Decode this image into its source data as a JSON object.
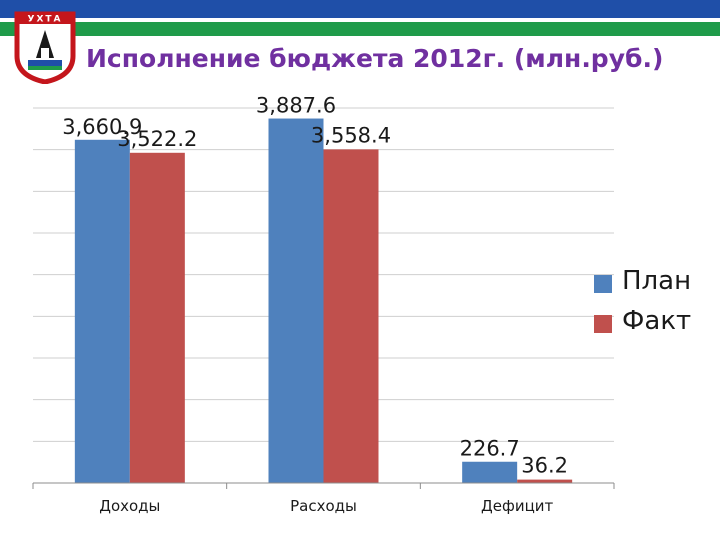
{
  "header": {
    "title": "Исполнение бюджета 2012г. (млн.руб.)",
    "logo_text": "УХТА",
    "colors": {
      "stripe_blue": "#1f4fa8",
      "stripe_green": "#1f9b4a",
      "title": "#7030a0"
    }
  },
  "chart_data": {
    "type": "bar",
    "categories": [
      "Доходы",
      "Расходы",
      "Дефицит"
    ],
    "series": [
      {
        "name": "План",
        "values": [
          3660.9,
          3887.6,
          226.7
        ],
        "labels": [
          "3,660.9",
          "3,887.6",
          "226.7"
        ],
        "color": "#4f81bd"
      },
      {
        "name": "Факт",
        "values": [
          3522.2,
          3558.4,
          36.2
        ],
        "labels": [
          "3,522.2",
          "3,558.4",
          "36.2"
        ],
        "color": "#c0504d"
      }
    ],
    "ylim": [
      0,
      4000
    ],
    "grid": true,
    "legend": "right"
  }
}
